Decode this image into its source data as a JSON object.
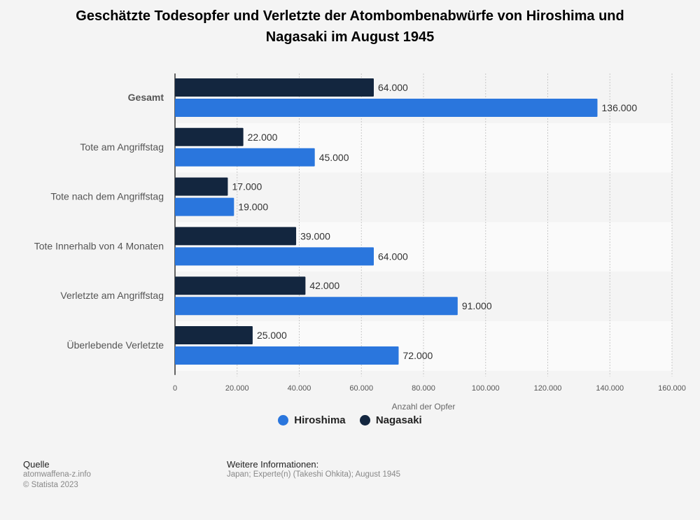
{
  "title_line1": "Geschätzte Todesopfer und Verletzte der Atombombenabwürfe von Hiroshima und",
  "title_line2": "Nagasaki im August 1945",
  "colors": {
    "hiroshima": "#2a76dd",
    "nagasaki": "#13263f",
    "background": "#f4f4f4"
  },
  "chart_data": {
    "type": "bar",
    "orientation": "horizontal",
    "categories": [
      "Gesamt",
      "Tote am Angriffstag",
      "Tote nach dem Angriffstag",
      "Tote Innerhalb von 4 Monaten",
      "Verletzte am Angriffstag",
      "Überlebende Verletzte"
    ],
    "series": [
      {
        "name": "Nagasaki",
        "values": [
          64000,
          22000,
          17000,
          39000,
          42000,
          25000
        ],
        "value_labels": [
          "64.000",
          "22.000",
          "17.000",
          "39.000",
          "42.000",
          "25.000"
        ]
      },
      {
        "name": "Hiroshima",
        "values": [
          136000,
          45000,
          19000,
          64000,
          91000,
          72000
        ],
        "value_labels": [
          "136.000",
          "45.000",
          "19.000",
          "64.000",
          "91.000",
          "72.000"
        ]
      }
    ],
    "xlabel": "Anzahl der Opfer",
    "xlim": [
      0,
      160000
    ],
    "ticks": [
      0,
      20000,
      40000,
      60000,
      80000,
      100000,
      120000,
      140000,
      160000
    ],
    "tick_labels": [
      "0",
      "20.000",
      "40.000",
      "60.000",
      "80.000",
      "100.000",
      "120.000",
      "140.000",
      "160.000"
    ],
    "grid": true,
    "legend_position": "bottom"
  },
  "legend": [
    {
      "name": "Hiroshima",
      "color": "#2a76dd"
    },
    {
      "name": "Nagasaki",
      "color": "#13263f"
    }
  ],
  "footer": {
    "source_label": "Quelle",
    "source_value": "atomwaffena-z.info",
    "copyright": "© Statista 2023",
    "info_label": "Weitere Informationen:",
    "info_value": "Japan; Experte(n) (Takeshi Ohkita); August 1945"
  }
}
